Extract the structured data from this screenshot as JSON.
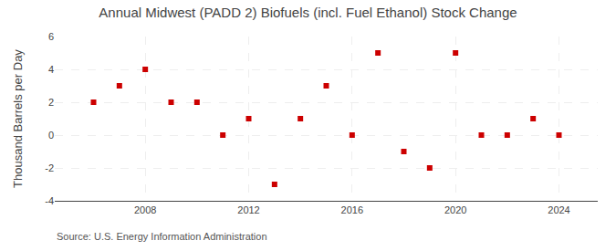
{
  "chart_data": {
    "type": "scatter",
    "title": "Annual Midwest (PADD 2) Biofuels (incl. Fuel Ethanol) Stock Change",
    "y_label": "Thousand Barrels per Day",
    "annotations": [
      "Source: U.S. Energy Information Administration"
    ],
    "x": [
      2006,
      2007,
      2008,
      2009,
      2010,
      2011,
      2012,
      2013,
      2014,
      2015,
      2016,
      2017,
      2018,
      2019,
      2020,
      2021,
      2022,
      2023,
      2024
    ],
    "values": [
      2,
      3,
      4,
      2,
      2,
      0,
      1,
      -3,
      1,
      3,
      0,
      5,
      -1,
      -2,
      5,
      0,
      0,
      1,
      0
    ],
    "color": "#cc0000",
    "marker": "square",
    "xlim": [
      2004.5,
      2025.5
    ],
    "xticks": [
      2008,
      2012,
      2016,
      2020,
      2024
    ],
    "ylim": [
      -4,
      6
    ],
    "yticks": [
      -4,
      -2,
      0,
      2,
      4,
      6
    ],
    "grid": true
  }
}
